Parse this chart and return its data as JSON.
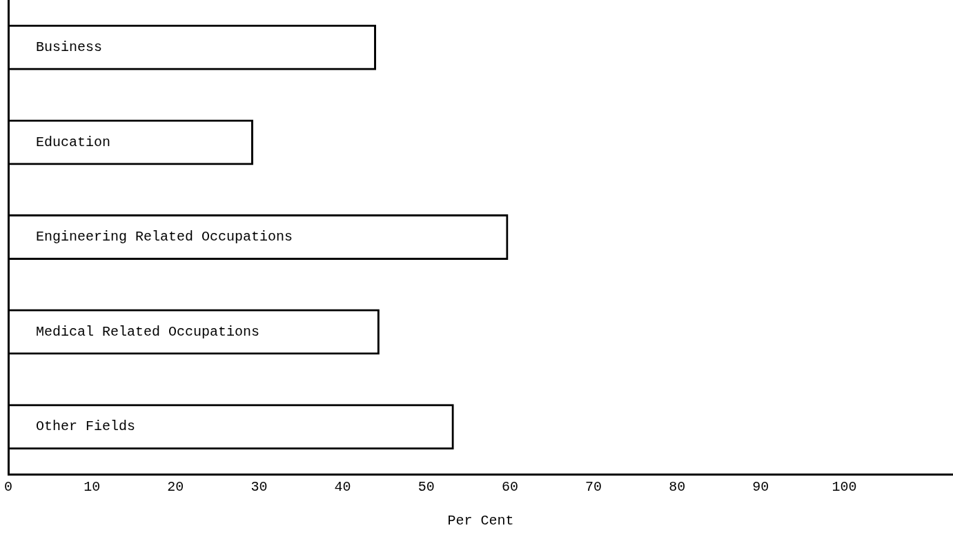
{
  "chart_data": {
    "type": "bar",
    "orientation": "horizontal",
    "xlabel": "Per Cent",
    "categories": [
      "Business",
      "Education",
      "Engineering Related Occupations",
      "Medical Related Occupations",
      "Other Fields"
    ],
    "values": [
      44,
      29.3,
      59.8,
      44.4,
      53.3
    ],
    "color": "#000000",
    "xlim": [
      0,
      113
    ],
    "xticks": [
      0,
      10,
      20,
      30,
      40,
      50,
      60,
      70,
      80,
      90,
      100
    ],
    "grid": false,
    "legend": false
  }
}
